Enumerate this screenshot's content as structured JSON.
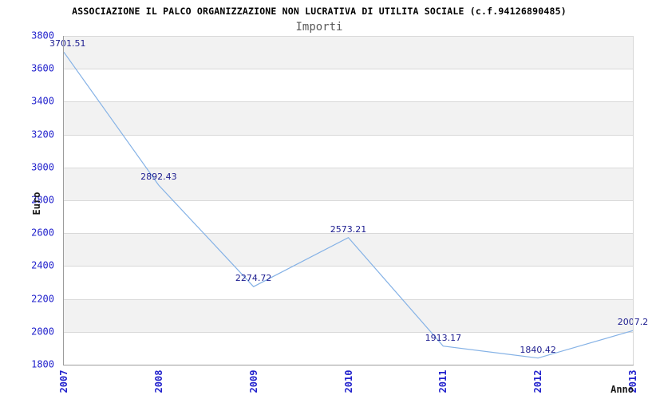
{
  "header": {
    "title": "ASSOCIAZIONE IL PALCO ORGANIZZAZIONE NON LUCRATIVA DI UTILITA SOCIALE (c.f.94126890485)",
    "subtitle": "Importi"
  },
  "chart_data": {
    "type": "line",
    "title": "ASSOCIAZIONE IL PALCO ORGANIZZAZIONE NON LUCRATIVA DI UTILITA SOCIALE (c.f.94126890485)",
    "subtitle": "Importi",
    "xlabel": "Anno",
    "ylabel": "Euro",
    "categories": [
      "2007",
      "2008",
      "2009",
      "2010",
      "2011",
      "2012",
      "2013"
    ],
    "series": [
      {
        "name": "Importi",
        "values": [
          3701.51,
          2892.43,
          2274.72,
          2573.21,
          1913.17,
          1840.42,
          2007.2
        ]
      }
    ],
    "point_labels": [
      "3701.51",
      "2892.43",
      "2274.72",
      "2573.21",
      "1913.17",
      "1840.42",
      "2007.2"
    ],
    "ylim": [
      1800,
      3800
    ],
    "ytick_step": 200,
    "grid": true,
    "background_banding": true,
    "legend": "none",
    "colors": {
      "line": "#85b2e6",
      "tick_label": "#2323cd",
      "point_label": "#1c1c8f",
      "band_gray": "#f2f2f2",
      "band_white": "#ffffff",
      "gridline": "#d9d9d9",
      "axis": "#9c9c9c",
      "axis_right": "#d6d6d6",
      "title": "#000000",
      "subtitle": "#5a5a5a"
    }
  }
}
